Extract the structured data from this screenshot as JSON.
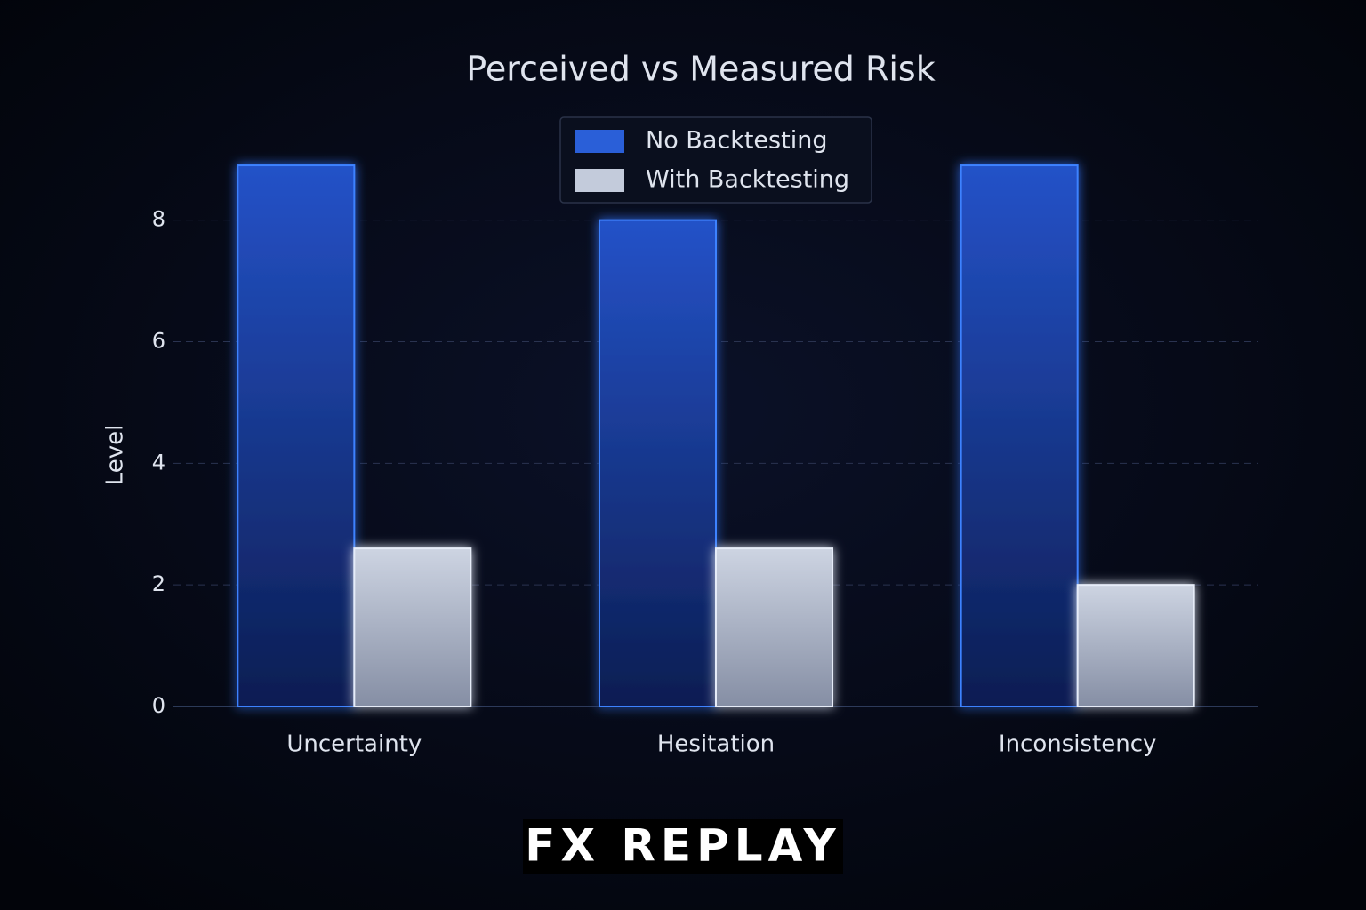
{
  "chart_data": {
    "type": "bar",
    "title": "Perceived vs Measured Risk",
    "y_label": "Level",
    "categories": [
      "Uncertainty",
      "Hesitation",
      "Inconsistency"
    ],
    "series": [
      {
        "name": "No Backtesting",
        "color": "#2a5fd8",
        "values": [
          8.9,
          8.0,
          8.9
        ]
      },
      {
        "name": "With Backtesting",
        "color": "#c3cbdb",
        "values": [
          2.6,
          2.6,
          2.0
        ]
      }
    ],
    "ylim": [
      0,
      9.5
    ],
    "yticks": [
      0,
      2,
      4,
      6,
      8
    ],
    "grid": true,
    "legend": "upper center",
    "logo": "FX REPLAY"
  }
}
